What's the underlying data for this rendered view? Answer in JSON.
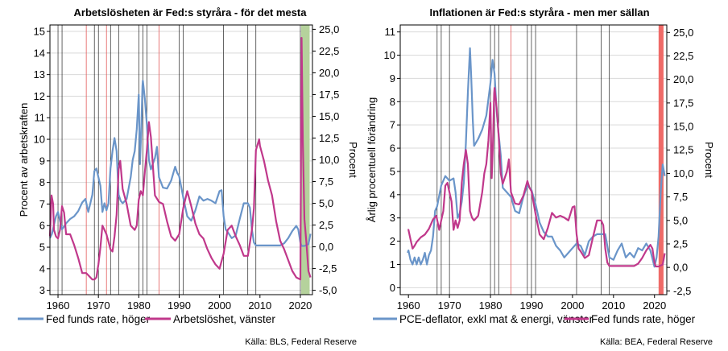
{
  "colors": {
    "fed_funds_blue": "#6a95c9",
    "unemployment_magenta": "#c0388b",
    "recession_line": "#000000",
    "fed_marker_red": "#e35a5a",
    "green_band": "#b5d29c",
    "red_band": "#ef6a67",
    "grid": "#d9d9d9"
  },
  "chart_data": [
    {
      "type": "line",
      "title": "Arbetslösheten är Fed:s styråra - för det mesta",
      "ylabel": "Procent av arbetskraften",
      "y2label": "Procent",
      "xlim": [
        1958,
        2023
      ],
      "ylim": [
        2.8,
        15.3
      ],
      "y2lim": [
        -5.5,
        25.5
      ],
      "x_ticks": [
        1960,
        1970,
        1980,
        1990,
        2000,
        2010,
        2020
      ],
      "x_tick_labels": [
        "1960",
        "1970",
        "1980",
        "1990",
        "2000",
        "2010",
        "2020"
      ],
      "y_ticks": [
        3,
        4,
        5,
        6,
        7,
        8,
        9,
        10,
        11,
        12,
        13,
        14,
        15
      ],
      "y_tick_labels": [
        "3",
        "4",
        "5",
        "6",
        "7",
        "8",
        "9",
        "10",
        "11",
        "12",
        "13",
        "14",
        "15"
      ],
      "y2_ticks": [
        -5,
        -2.5,
        0,
        2.5,
        5,
        7.5,
        10,
        12.5,
        15,
        17.5,
        20,
        22.5,
        25
      ],
      "y2_tick_labels": [
        "-5,0",
        "-2,5",
        "0,0",
        "2,5",
        "5,0",
        "7,5",
        "10,0",
        "12,5",
        "15,0",
        "17,5",
        "20,0",
        "22,5",
        "25,0"
      ],
      "legend": [
        "Fed funds rate, höger",
        "Arbetslöshet, vänster"
      ],
      "legend_position": "bottom",
      "source": "Källa: BLS, Federal Reserve",
      "black_vertical_lines_x": [
        1960,
        1961,
        1969,
        1970,
        1973,
        1975,
        1980,
        1981,
        1982,
        1990,
        1991,
        2001,
        2007,
        2009,
        2020
      ],
      "red_vertical_lines_x": [
        1967,
        1972,
        1985
      ],
      "shaded_band_x": [
        2020.2,
        2022.3
      ],
      "series": [
        {
          "name": "Fed funds rate, höger",
          "axis": "right",
          "x": [
            1958,
            1958.5,
            1959,
            1959.5,
            1960,
            1960.5,
            1961,
            1962,
            1963,
            1964,
            1965,
            1966,
            1966.8,
            1967.5,
            1968,
            1968.5,
            1969,
            1969.5,
            1970,
            1970.5,
            1971,
            1971.5,
            1972,
            1972.5,
            1973,
            1973.5,
            1974,
            1974.5,
            1975,
            1975.5,
            1976,
            1977,
            1978,
            1978.5,
            1979,
            1979.5,
            1980,
            1980.3,
            1980.6,
            1980.9,
            1981,
            1981.5,
            1982,
            1982.5,
            1983,
            1984,
            1984.5,
            1985,
            1986,
            1987,
            1988,
            1989,
            1989.5,
            1990,
            1991,
            1992,
            1993,
            1994,
            1995,
            1996,
            1997,
            1998,
            1999,
            2000,
            2000.5,
            2001,
            2001.5,
            2002,
            2003,
            2004,
            2005,
            2006,
            2007,
            2007.5,
            2008,
            2008.5,
            2009,
            2015,
            2016,
            2017,
            2018,
            2019,
            2019.5,
            2020,
            2020.3,
            2021,
            2022,
            2022.5
          ],
          "values": [
            1.0,
            1.5,
            2.5,
            3.5,
            4.0,
            3.0,
            2.0,
            2.7,
            3.2,
            3.5,
            4.1,
            5.1,
            5.5,
            4.0,
            5.0,
            6.0,
            8.7,
            9.0,
            8.0,
            7.0,
            4.0,
            5.0,
            4.2,
            5.0,
            9.0,
            11.0,
            12.5,
            11.0,
            6.0,
            5.3,
            5.0,
            5.5,
            8.0,
            10.0,
            11.0,
            13.5,
            17.5,
            9.5,
            13.0,
            18.5,
            19.1,
            17.0,
            14.0,
            10.0,
            8.9,
            10.2,
            11.5,
            8.0,
            6.8,
            6.7,
            7.6,
            9.2,
            8.5,
            8.1,
            5.7,
            3.5,
            3.0,
            4.2,
            5.8,
            5.3,
            5.5,
            5.3,
            5.0,
            6.4,
            6.5,
            3.5,
            2.0,
            1.7,
            1.0,
            1.3,
            3.2,
            5.0,
            5.0,
            4.5,
            2.0,
            0.5,
            0.15,
            0.15,
            0.4,
            1.0,
            1.8,
            2.4,
            2.0,
            0.5,
            0.1,
            0.1,
            0.3,
            1.5
          ]
        },
        {
          "name": "Arbetslöshet, vänster",
          "axis": "left",
          "x": [
            1958,
            1958.4,
            1958.8,
            1959,
            1959.5,
            1960,
            1960.5,
            1961,
            1961.5,
            1962,
            1963,
            1964,
            1965,
            1966,
            1967,
            1968,
            1968.5,
            1969,
            1969.5,
            1970,
            1970.5,
            1971,
            1972,
            1973,
            1973.5,
            1974,
            1974.5,
            1975,
            1975.4,
            1976,
            1977,
            1978,
            1979,
            1979.5,
            1980,
            1980.5,
            1981,
            1981.5,
            1982,
            1982.5,
            1983,
            1984,
            1985,
            1986,
            1987,
            1988,
            1989,
            1990,
            1991,
            1992,
            1993,
            1994,
            1995,
            1996,
            1997,
            1998,
            1999,
            2000,
            2001,
            2002,
            2003,
            2004,
            2005,
            2006,
            2007,
            2008,
            2008.5,
            2009,
            2009.8,
            2010,
            2011,
            2012,
            2013,
            2014,
            2015,
            2016,
            2017,
            2018,
            2019,
            2020,
            2020.3,
            2020.6,
            2021,
            2021.5,
            2022,
            2022.5
          ],
          "values": [
            5.5,
            7.4,
            7.0,
            5.8,
            5.5,
            5.4,
            5.8,
            6.9,
            6.6,
            5.6,
            5.6,
            5.1,
            4.5,
            3.8,
            3.8,
            3.6,
            3.5,
            3.5,
            3.6,
            4.2,
            5.0,
            6.0,
            5.6,
            4.9,
            4.8,
            5.5,
            6.5,
            8.6,
            9.0,
            7.7,
            7.0,
            6.0,
            5.8,
            6.0,
            7.2,
            7.6,
            7.4,
            8.5,
            9.5,
            10.8,
            10.1,
            7.4,
            7.1,
            7.0,
            6.2,
            5.5,
            5.3,
            5.6,
            6.8,
            7.6,
            6.9,
            6.1,
            5.6,
            5.4,
            4.9,
            4.5,
            4.2,
            4.0,
            4.7,
            5.8,
            6.0,
            5.5,
            5.1,
            4.6,
            4.6,
            5.8,
            6.8,
            9.5,
            10.0,
            9.7,
            9.0,
            8.1,
            7.4,
            6.2,
            5.3,
            4.9,
            4.4,
            3.9,
            3.6,
            3.5,
            14.7,
            10.0,
            6.3,
            5.2,
            3.9,
            3.6
          ]
        }
      ]
    },
    {
      "type": "line",
      "title": "Inflationen är Fed:s styråra - men mer sällan",
      "ylabel": "Årlig procentuell förändring",
      "y2label": "Procent",
      "xlim": [
        1958,
        2023
      ],
      "ylim": [
        -0.3,
        11.3
      ],
      "y2lim": [
        -2.9,
        25.8
      ],
      "x_ticks": [
        1960,
        1970,
        1980,
        1990,
        2000,
        2010,
        2020
      ],
      "x_tick_labels": [
        "1960",
        "1970",
        "1980",
        "1990",
        "2000",
        "2010",
        "2020"
      ],
      "y_ticks": [
        0,
        1,
        2,
        3,
        4,
        5,
        6,
        7,
        8,
        9,
        10,
        11
      ],
      "y_tick_labels": [
        "0",
        "1",
        "2",
        "3",
        "4",
        "5",
        "6",
        "7",
        "8",
        "9",
        "10",
        "11"
      ],
      "y2_ticks": [
        -2.5,
        0,
        2.5,
        5,
        7.5,
        10,
        12.5,
        15,
        17.5,
        20,
        22.5,
        25
      ],
      "y2_tick_labels": [
        "-2,5",
        "0,0",
        "2,5",
        "5,0",
        "7,5",
        "10,0",
        "12,5",
        "15,0",
        "17,5",
        "20,0",
        "22,5",
        "25,0"
      ],
      "legend": [
        "PCE-deflator, exkl mat & energi, vänster",
        "Fed funds rate, höger"
      ],
      "legend_position": "bottom",
      "source": "Källa: BEA, Federal Reserve",
      "black_vertical_lines_x": [
        1967,
        1968,
        1970,
        1980,
        1981,
        1982,
        1989,
        1990,
        1991,
        2001,
        2007,
        2009
      ],
      "red_vertical_lines_x": [
        1985
      ],
      "shaded_band_x": [
        2021.0,
        2022.2
      ],
      "series": [
        {
          "name": "PCE-deflator, exkl mat & energi, vänster",
          "axis": "left",
          "x": [
            1959.8,
            1960,
            1960.5,
            1961,
            1961.5,
            1962,
            1962.5,
            1963,
            1963.5,
            1964,
            1964.5,
            1965,
            1965.5,
            1966,
            1966.5,
            1967,
            1968,
            1969,
            1970,
            1971,
            1971.5,
            1972,
            1972.5,
            1973,
            1973.5,
            1974,
            1974.5,
            1975,
            1975.3,
            1975.7,
            1976,
            1977,
            1978,
            1979,
            1980,
            1980.5,
            1981,
            1981.5,
            1982,
            1982.5,
            1983,
            1984,
            1985,
            1986,
            1987,
            1988,
            1989,
            1990,
            1991,
            1992,
            1993,
            1994,
            1995,
            1996,
            1997,
            1998,
            1999,
            2000,
            2001,
            2002,
            2003,
            2004,
            2005,
            2006,
            2007,
            2008,
            2009,
            2010,
            2011,
            2012,
            2013,
            2014,
            2015,
            2016,
            2017,
            2018,
            2019,
            2020,
            2020.5,
            2021,
            2021.5,
            2022,
            2022.5
          ],
          "values": [
            1.5,
            1.6,
            1.2,
            1.0,
            1.3,
            1.0,
            1.3,
            1.0,
            1.2,
            1.5,
            1.0,
            1.4,
            1.6,
            2.2,
            3.3,
            3.5,
            4.4,
            4.8,
            4.6,
            4.7,
            4.1,
            3.0,
            3.2,
            3.7,
            4.5,
            6.2,
            8.4,
            10.3,
            9.1,
            7.2,
            6.1,
            6.4,
            6.8,
            7.4,
            8.8,
            9.8,
            9.2,
            7.6,
            6.6,
            5.7,
            4.3,
            4.1,
            3.9,
            3.3,
            3.2,
            3.9,
            4.4,
            4.2,
            3.6,
            2.8,
            2.4,
            2.2,
            2.2,
            1.8,
            1.6,
            1.3,
            1.5,
            1.7,
            1.9,
            1.8,
            1.4,
            2.0,
            2.2,
            2.3,
            2.3,
            2.3,
            1.3,
            1.2,
            1.6,
            1.9,
            1.3,
            1.5,
            1.3,
            1.7,
            1.6,
            1.9,
            1.6,
            0.9,
            1.3,
            2.2,
            4.1,
            5.3,
            4.8
          ]
        },
        {
          "name": "Fed funds rate, höger",
          "axis": "right",
          "x": [
            1959.8,
            1960,
            1960.5,
            1961,
            1961.5,
            1962,
            1963,
            1964,
            1965,
            1966,
            1966.8,
            1967.5,
            1968,
            1968.5,
            1969,
            1969.5,
            1970,
            1970.5,
            1971,
            1971.5,
            1972,
            1972.5,
            1973,
            1973.5,
            1974,
            1974.5,
            1975,
            1975.5,
            1976,
            1977,
            1978,
            1978.5,
            1979,
            1979.5,
            1980,
            1980.3,
            1980.6,
            1980.9,
            1981,
            1981.5,
            1982,
            1982.5,
            1983,
            1984,
            1984.5,
            1985,
            1986,
            1987,
            1988,
            1989,
            1989.5,
            1990,
            1991,
            1992,
            1993,
            1994,
            1995,
            1996,
            1997,
            1998,
            1999,
            2000,
            2000.5,
            2001,
            2001.5,
            2002,
            2003,
            2004,
            2005,
            2006,
            2007,
            2007.5,
            2008,
            2008.5,
            2009,
            2015,
            2016,
            2017,
            2018,
            2019,
            2019.5,
            2020,
            2020.3,
            2021,
            2022,
            2022.5
          ],
          "values": [
            4.0,
            4.0,
            3.0,
            2.0,
            2.3,
            2.7,
            3.2,
            3.5,
            4.1,
            5.1,
            5.5,
            4.0,
            5.0,
            6.0,
            8.7,
            9.0,
            8.0,
            7.0,
            4.0,
            5.0,
            4.2,
            5.0,
            9.0,
            11.0,
            12.5,
            11.0,
            6.0,
            5.3,
            5.0,
            5.5,
            8.0,
            10.0,
            11.0,
            13.5,
            17.5,
            9.5,
            13.0,
            18.5,
            19.1,
            17.0,
            14.0,
            10.0,
            8.9,
            10.2,
            11.5,
            8.0,
            6.8,
            6.7,
            7.6,
            9.2,
            8.5,
            8.1,
            5.7,
            3.5,
            3.0,
            4.2,
            5.8,
            5.3,
            5.5,
            5.3,
            5.0,
            6.4,
            6.5,
            3.5,
            2.0,
            1.7,
            1.0,
            1.3,
            3.2,
            5.0,
            5.0,
            4.5,
            2.0,
            0.5,
            0.15,
            0.15,
            0.4,
            1.0,
            1.8,
            2.4,
            2.0,
            0.5,
            0.1,
            0.1,
            0.3,
            1.5
          ]
        }
      ]
    }
  ]
}
